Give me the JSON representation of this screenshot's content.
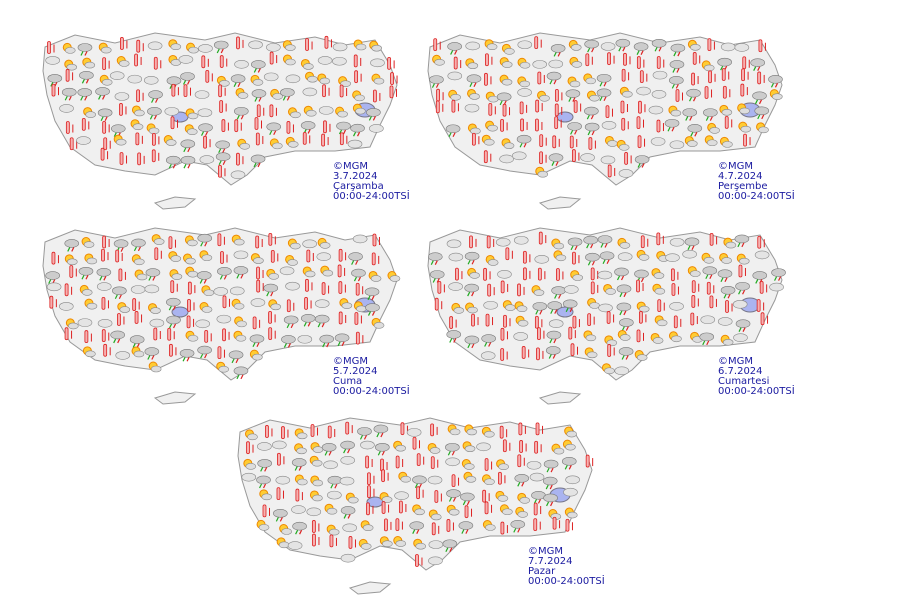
{
  "maps": [
    {
      "credit": "©MGM",
      "date": "3.7.2024",
      "day": "Çarşamba",
      "period": "00:00-24:00TSİ"
    },
    {
      "credit": "©MGM",
      "date": "4.7.2024",
      "day": "Perşembe",
      "period": "00:00-24:00TSİ"
    },
    {
      "credit": "©MGM",
      "date": "5.7.2024",
      "day": "Cuma",
      "period": "00:00-24:00TSİ"
    },
    {
      "credit": "©MGM",
      "date": "6.7.2024",
      "day": "Cumartesi",
      "period": "00:00-24:00TSİ"
    },
    {
      "credit": "©MGM",
      "date": "7.7.2024",
      "day": "Pazar",
      "period": "00:00-24:00TSİ"
    }
  ]
}
